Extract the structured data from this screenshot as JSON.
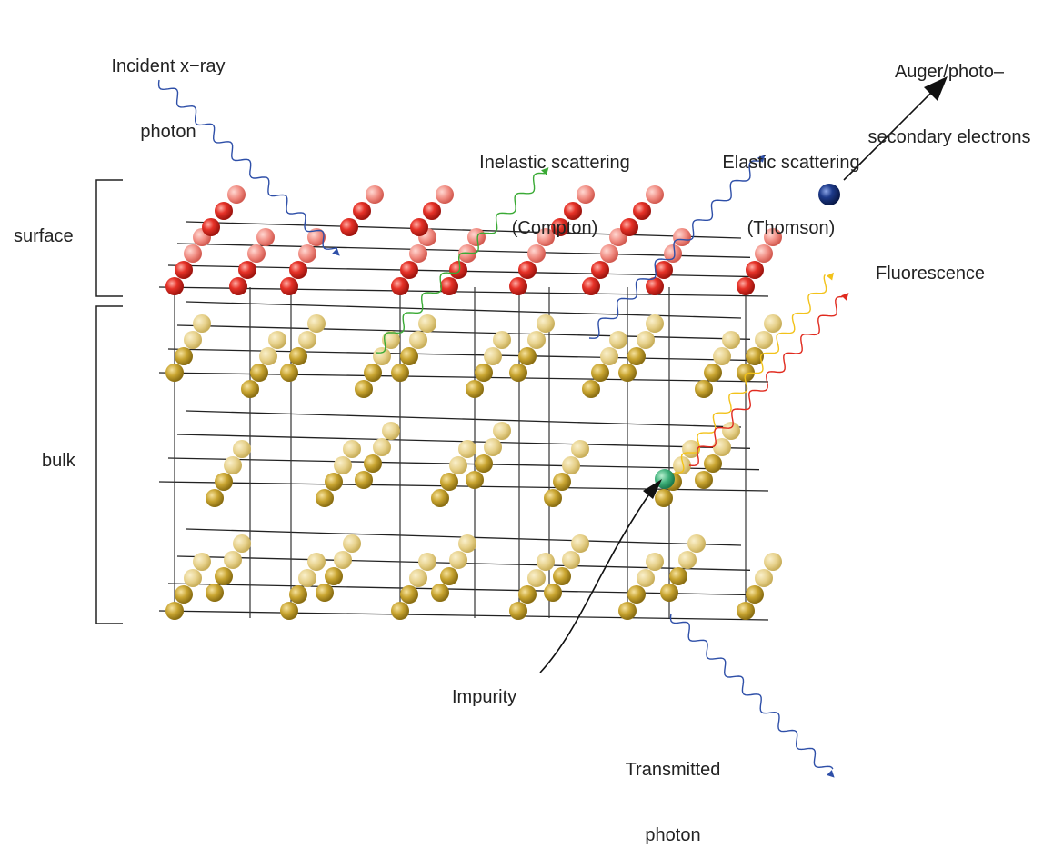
{
  "labels": {
    "incident": {
      "line1": "Incident x−ray",
      "line2": "photon"
    },
    "auger": {
      "line1": "Auger/photo–",
      "line2": "secondary electrons"
    },
    "inelastic": {
      "line1": "Inelastic scattering",
      "line2": "(Compton)"
    },
    "elastic": {
      "line1": "Elastic scattering",
      "line2": "(Thomson)"
    },
    "fluorescence": "Fluorescence",
    "surface": "surface",
    "bulk": "bulk",
    "impurity": "Impurity",
    "transmitted": {
      "line1": "Transmitted",
      "line2": "photon"
    }
  },
  "colors": {
    "surface_atom": "#e63228",
    "bulk_atom": "#c9a531",
    "impurity_atom": "#3fb07a",
    "electron": "#1d3a8a",
    "xray_wave": "#2e4fa8",
    "compton_wave": "#3aaa35",
    "fluorescence_yellow": "#f2c21a",
    "fluorescence_red": "#e02a1e",
    "bond": "#222222"
  }
}
